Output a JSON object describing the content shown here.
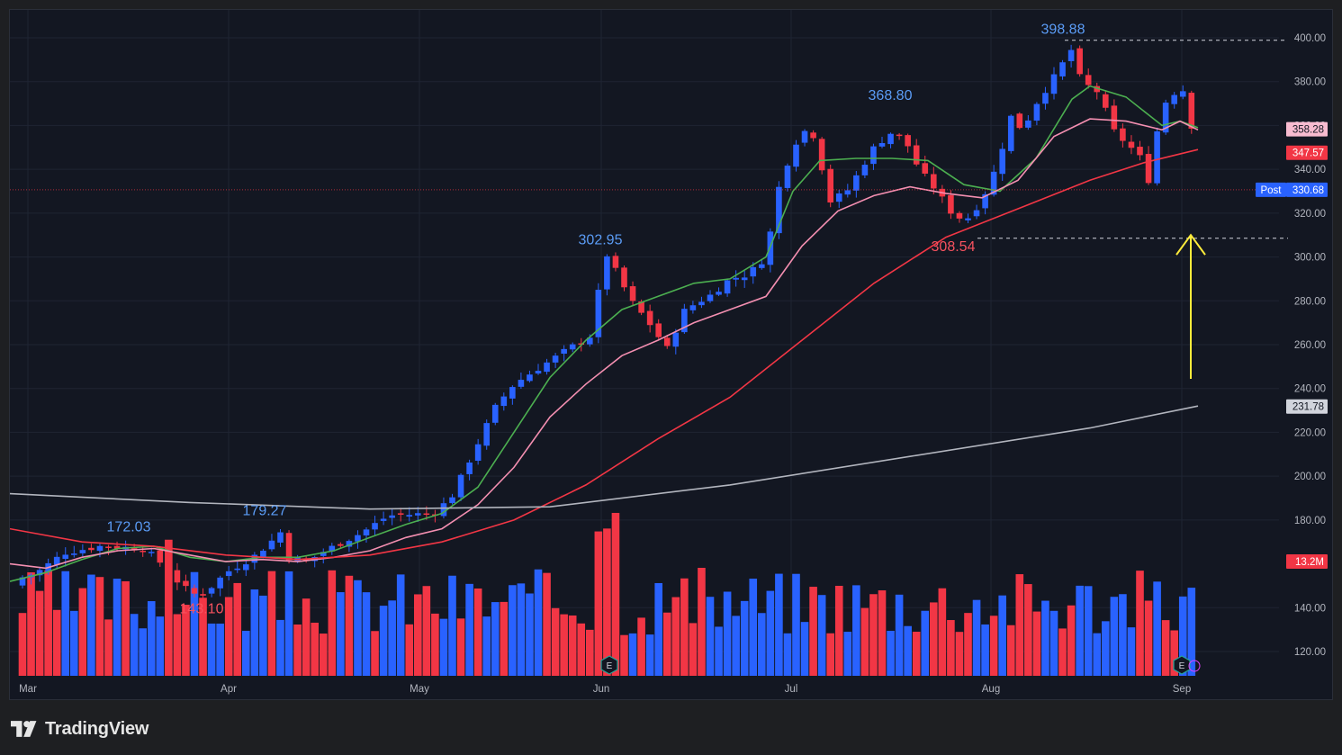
{
  "brand": {
    "name": "TradingView"
  },
  "colors": {
    "up": "#2962ff",
    "down": "#f23645",
    "ema_fast": "#4caf50",
    "ema_mid": "#f48fb1",
    "ma_50": "#f23645",
    "ma_200": "#b2b5be",
    "annotation": "#ffeb3b",
    "high_label": "#5b9cf6",
    "low_label": "#f7525f"
  },
  "chart_data": {
    "type": "candlestick",
    "x_axis": {
      "labels": [
        "Mar",
        "Apr",
        "May",
        "Jun",
        "Jul",
        "Aug",
        "Sep"
      ]
    },
    "y_axis": {
      "labels": [
        "400.00",
        "380.00",
        "360.00",
        "340.00",
        "320.00",
        "300.00",
        "280.00",
        "260.00",
        "240.00",
        "220.00",
        "200.00",
        "180.00",
        "140.00",
        "120.00"
      ],
      "range": [
        116,
        405
      ]
    },
    "price_labels": [
      {
        "text": "358.28",
        "value": 358.28,
        "style": "pink"
      },
      {
        "text": "347.57",
        "value": 347.57,
        "style": "red"
      },
      {
        "text": "330.68",
        "value": 330.68,
        "style": "post",
        "prefix": "Post"
      },
      {
        "text": "231.78",
        "value": 231.78,
        "style": "grey"
      }
    ],
    "volume_label": "13.2M",
    "annotations": [
      {
        "text": "398.88",
        "value": 398.88,
        "kind": "high"
      },
      {
        "text": "368.80",
        "value": 368.8,
        "kind": "high"
      },
      {
        "text": "302.95",
        "value": 302.95,
        "kind": "high"
      },
      {
        "text": "179.27",
        "value": 179.27,
        "kind": "high"
      },
      {
        "text": "172.03",
        "value": 172.03,
        "kind": "high"
      },
      {
        "text": "143.10",
        "value": 143.1,
        "kind": "low"
      },
      {
        "text": "308.54",
        "value": 308.54,
        "kind": "low"
      }
    ],
    "earnings_markers": [
      "E",
      "E"
    ],
    "series": [
      {
        "name": "EMA fast",
        "points": [
          [
            0,
            152
          ],
          [
            40,
            156
          ],
          [
            80,
            162
          ],
          [
            120,
            167
          ],
          [
            160,
            168
          ],
          [
            200,
            163
          ],
          [
            240,
            161
          ],
          [
            280,
            163
          ],
          [
            320,
            163
          ],
          [
            360,
            166
          ],
          [
            400,
            172
          ],
          [
            440,
            178
          ],
          [
            480,
            183
          ],
          [
            520,
            195
          ],
          [
            560,
            220
          ],
          [
            600,
            245
          ],
          [
            640,
            262
          ],
          [
            680,
            276
          ],
          [
            720,
            282
          ],
          [
            760,
            288
          ],
          [
            800,
            290
          ],
          [
            840,
            300
          ],
          [
            870,
            330
          ],
          [
            900,
            344
          ],
          [
            940,
            345
          ],
          [
            980,
            345
          ],
          [
            1020,
            344
          ],
          [
            1060,
            333
          ],
          [
            1100,
            330
          ],
          [
            1140,
            345
          ],
          [
            1180,
            372
          ],
          [
            1200,
            378
          ],
          [
            1240,
            373
          ],
          [
            1280,
            360
          ],
          [
            1300,
            362
          ],
          [
            1320,
            359
          ]
        ]
      },
      {
        "name": "EMA mid",
        "points": [
          [
            0,
            160
          ],
          [
            40,
            158
          ],
          [
            80,
            163
          ],
          [
            120,
            166
          ],
          [
            160,
            167
          ],
          [
            200,
            164
          ],
          [
            240,
            161
          ],
          [
            280,
            162
          ],
          [
            320,
            161
          ],
          [
            360,
            163
          ],
          [
            400,
            166
          ],
          [
            440,
            172
          ],
          [
            480,
            176
          ],
          [
            520,
            187
          ],
          [
            560,
            204
          ],
          [
            600,
            227
          ],
          [
            640,
            242
          ],
          [
            680,
            255
          ],
          [
            720,
            262
          ],
          [
            760,
            270
          ],
          [
            800,
            276
          ],
          [
            840,
            282
          ],
          [
            880,
            305
          ],
          [
            920,
            321
          ],
          [
            960,
            328
          ],
          [
            1000,
            332
          ],
          [
            1040,
            329
          ],
          [
            1080,
            327
          ],
          [
            1120,
            335
          ],
          [
            1160,
            355
          ],
          [
            1200,
            363
          ],
          [
            1240,
            362
          ],
          [
            1280,
            358
          ],
          [
            1300,
            362
          ],
          [
            1320,
            358
          ]
        ]
      },
      {
        "name": "MA 50",
        "points": [
          [
            0,
            176
          ],
          [
            80,
            170
          ],
          [
            160,
            168
          ],
          [
            240,
            164
          ],
          [
            320,
            162
          ],
          [
            400,
            164
          ],
          [
            480,
            170
          ],
          [
            560,
            180
          ],
          [
            640,
            196
          ],
          [
            720,
            217
          ],
          [
            800,
            236
          ],
          [
            880,
            262
          ],
          [
            960,
            288
          ],
          [
            1040,
            309
          ],
          [
            1120,
            322
          ],
          [
            1200,
            335
          ],
          [
            1260,
            343
          ],
          [
            1320,
            349
          ]
        ]
      },
      {
        "name": "MA 200",
        "points": [
          [
            0,
            192
          ],
          [
            200,
            188
          ],
          [
            400,
            185
          ],
          [
            600,
            186
          ],
          [
            800,
            196
          ],
          [
            1000,
            209
          ],
          [
            1200,
            222
          ],
          [
            1320,
            232
          ]
        ]
      }
    ]
  }
}
